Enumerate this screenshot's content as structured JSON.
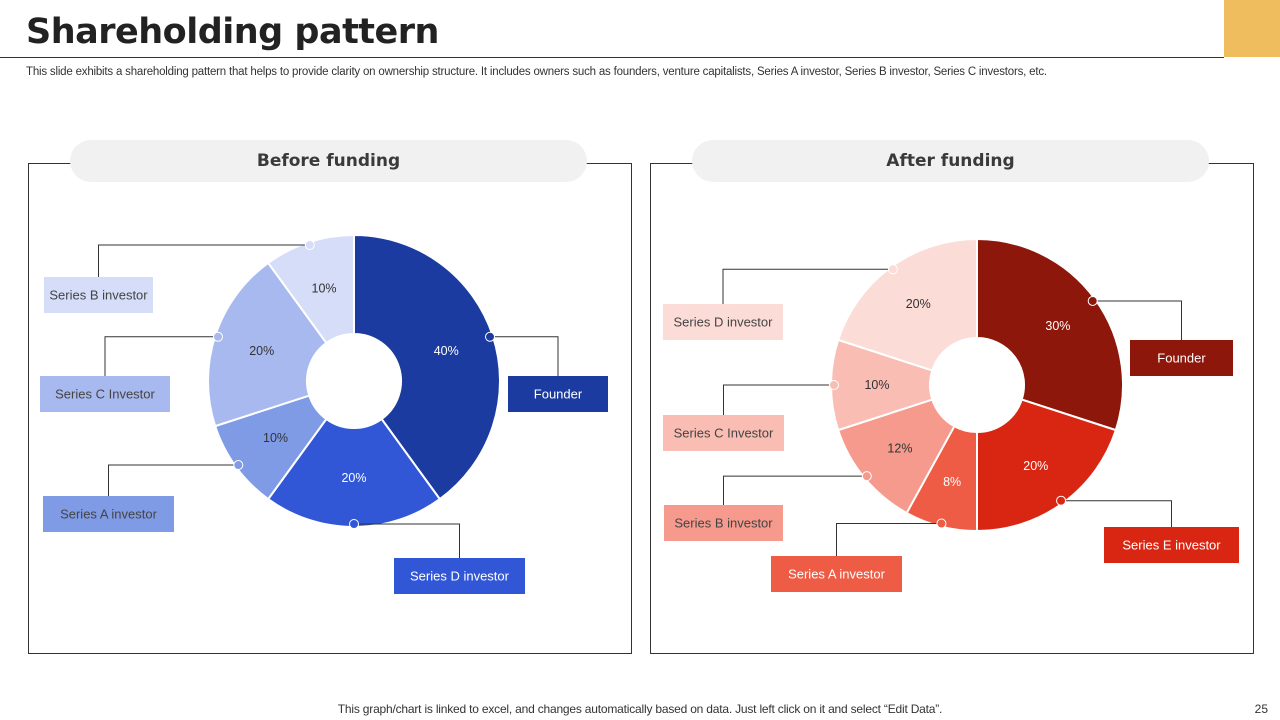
{
  "slide": {
    "title": "Shareholding pattern",
    "subtitle": "This slide exhibits a shareholding pattern that helps to provide clarity on ownership structure. It includes owners such as founders, venture capitalists, Series A investor, Series B investor, Series C investors, etc.",
    "footer": "This graph/chart is linked to excel,  and changes automatically based on data. Just left click on it and select “Edit Data”.",
    "page_number": "25",
    "accent_color": "#f0bd5e"
  },
  "chart_data": [
    {
      "type": "donut",
      "title": "Before funding",
      "slices": [
        {
          "name": "Founder",
          "value": 40,
          "label": "40%",
          "color": "#1c3ba0"
        },
        {
          "name": "Series D investor",
          "value": 20,
          "label": "20%",
          "color": "#3157d6"
        },
        {
          "name": "Series A investor",
          "value": 10,
          "label": "10%",
          "color": "#7f9be6"
        },
        {
          "name": "Series C Investor",
          "value": 20,
          "label": "20%",
          "color": "#a8b9f0"
        },
        {
          "name": "Series B investor",
          "value": 10,
          "label": "10%",
          "color": "#d5ddf8"
        }
      ]
    },
    {
      "type": "donut",
      "title": "After funding",
      "slices": [
        {
          "name": "Founder",
          "value": 30,
          "label": "30%",
          "color": "#8e170b"
        },
        {
          "name": "Series E investor",
          "value": 20,
          "label": "20%",
          "color": "#d92613"
        },
        {
          "name": "Series A investor",
          "value": 8,
          "label": "8%",
          "color": "#ef5c46"
        },
        {
          "name": "Series B investor",
          "value": 12,
          "label": "12%",
          "color": "#f59a8c"
        },
        {
          "name": "Series C Investor",
          "value": 10,
          "label": "10%",
          "color": "#f9bdb3"
        },
        {
          "name": "Series D investor",
          "value": 20,
          "label": "20%",
          "color": "#fcdcd7"
        }
      ]
    }
  ]
}
